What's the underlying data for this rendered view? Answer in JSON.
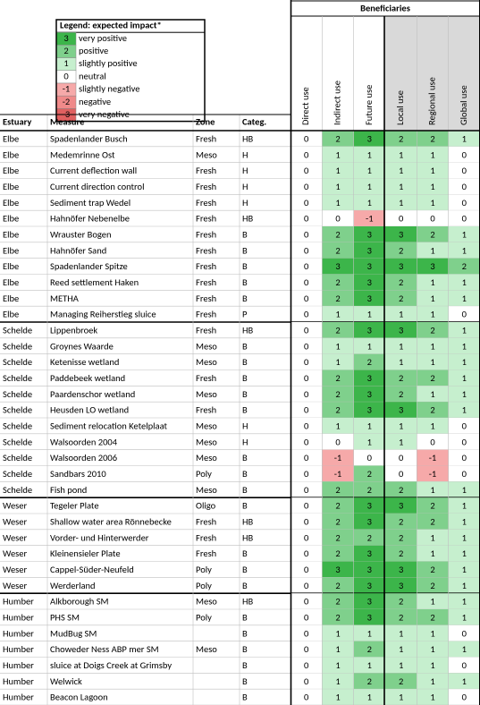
{
  "legend": {
    "title": "Legend: expected impact*",
    "entries": [
      {
        "value": 3,
        "label": "very positive",
        "color": "#3cb54a"
      },
      {
        "value": 2,
        "label": "positive",
        "color": "#7fd08c"
      },
      {
        "value": 1,
        "label": "slightly positive",
        "color": "#c6efce"
      },
      {
        "value": 0,
        "label": "neutral",
        "color": "#ffffff"
      },
      {
        "value": -1,
        "label": "slightly negative",
        "color": "#f6a9a9"
      },
      {
        "value": -2,
        "label": "negative",
        "color": "#f08a8a"
      },
      {
        "value": -3,
        "label": "very negative",
        "color": "#e06060"
      }
    ]
  },
  "table": {
    "group_header": "Beneficiaries",
    "headers": [
      "Estuary",
      "Measure",
      "Zone",
      "Categ."
    ],
    "columns": [
      "Direct use",
      "Indirect use",
      "Future use",
      "Local use",
      "Regional use",
      "Global use"
    ],
    "rows": [
      {
        "estuary": "Elbe",
        "measure": "Spadenlander Busch",
        "zone": "Fresh",
        "categ": "HB",
        "values": [
          0,
          2,
          3,
          2,
          2,
          1
        ]
      },
      {
        "estuary": "Elbe",
        "measure": "Medemrinne Ost",
        "zone": "Meso",
        "categ": "H",
        "values": [
          0,
          1,
          1,
          1,
          1,
          0
        ]
      },
      {
        "estuary": "Elbe",
        "measure": "Current deflection wall",
        "zone": "Fresh",
        "categ": "H",
        "values": [
          0,
          1,
          1,
          1,
          1,
          0
        ]
      },
      {
        "estuary": "Elbe",
        "measure": "Current direction control",
        "zone": "Fresh",
        "categ": "H",
        "values": [
          0,
          1,
          1,
          1,
          1,
          0
        ]
      },
      {
        "estuary": "Elbe",
        "measure": "Sediment trap Wedel",
        "zone": "Fresh",
        "categ": "H",
        "values": [
          0,
          1,
          1,
          1,
          1,
          0
        ]
      },
      {
        "estuary": "Elbe",
        "measure": "Hahnöfer Nebenelbe",
        "zone": "Fresh",
        "categ": "HB",
        "values": [
          0,
          0,
          -1,
          0,
          0,
          0
        ]
      },
      {
        "estuary": "Elbe",
        "measure": "Wrauster Bogen",
        "zone": "Fresh",
        "categ": "B",
        "values": [
          0,
          2,
          3,
          3,
          2,
          1
        ]
      },
      {
        "estuary": "Elbe",
        "measure": "Hahnöfer Sand",
        "zone": "Fresh",
        "categ": "B",
        "values": [
          0,
          2,
          3,
          2,
          1,
          1
        ]
      },
      {
        "estuary": "Elbe",
        "measure": "Spadenlander Spitze",
        "zone": "Fresh",
        "categ": "B",
        "values": [
          0,
          3,
          3,
          3,
          3,
          2
        ]
      },
      {
        "estuary": "Elbe",
        "measure": "Reed settlement Haken",
        "zone": "Fresh",
        "categ": "B",
        "values": [
          0,
          2,
          3,
          2,
          1,
          1
        ]
      },
      {
        "estuary": "Elbe",
        "measure": "METHA",
        "zone": "Fresh",
        "categ": "B",
        "values": [
          0,
          2,
          3,
          2,
          1,
          1
        ]
      },
      {
        "estuary": "Elbe",
        "measure": "Managing Reiherstieg sluice",
        "zone": "Fresh",
        "categ": "P",
        "values": [
          0,
          1,
          1,
          1,
          1,
          0
        ]
      },
      {
        "estuary": "Schelde",
        "measure": "Lippenbroek",
        "zone": "Fresh",
        "categ": "HB",
        "values": [
          0,
          2,
          3,
          3,
          2,
          1
        ]
      },
      {
        "estuary": "Schelde",
        "measure": "Groynes Waarde",
        "zone": "Meso",
        "categ": "B",
        "values": [
          0,
          1,
          1,
          1,
          1,
          1
        ]
      },
      {
        "estuary": "Schelde",
        "measure": "Ketenisse wetland",
        "zone": "Meso",
        "categ": "B",
        "values": [
          0,
          1,
          2,
          1,
          1,
          1
        ]
      },
      {
        "estuary": "Schelde",
        "measure": "Paddebeek wetland",
        "zone": "Fresh",
        "categ": "B",
        "values": [
          0,
          2,
          3,
          2,
          2,
          1
        ]
      },
      {
        "estuary": "Schelde",
        "measure": "Paardenschor wetland",
        "zone": "Meso",
        "categ": "B",
        "values": [
          0,
          2,
          3,
          2,
          1,
          1
        ]
      },
      {
        "estuary": "Schelde",
        "measure": "Heusden LO wetland",
        "zone": "Fresh",
        "categ": "B",
        "values": [
          0,
          2,
          3,
          3,
          2,
          1
        ]
      },
      {
        "estuary": "Schelde",
        "measure": "Sediment relocation Ketelplaat",
        "zone": "Meso",
        "categ": "H",
        "values": [
          0,
          1,
          1,
          1,
          1,
          0
        ]
      },
      {
        "estuary": "Schelde",
        "measure": "Walsoorden 2004",
        "zone": "Meso",
        "categ": "H",
        "values": [
          0,
          0,
          1,
          1,
          0,
          0
        ]
      },
      {
        "estuary": "Schelde",
        "measure": "Walsoorden 2006",
        "zone": "Meso",
        "categ": "B",
        "values": [
          0,
          -1,
          0,
          0,
          -1,
          0
        ]
      },
      {
        "estuary": "Schelde",
        "measure": "Sandbars 2010",
        "zone": "Poly",
        "categ": "B",
        "values": [
          0,
          -1,
          2,
          0,
          -1,
          0
        ]
      },
      {
        "estuary": "Schelde",
        "measure": "Fish pond",
        "zone": "Meso",
        "categ": "B",
        "values": [
          0,
          2,
          2,
          2,
          1,
          1
        ]
      },
      {
        "estuary": "Weser",
        "measure": "Tegeler Plate",
        "zone": "Oligo",
        "categ": "B",
        "values": [
          0,
          2,
          3,
          3,
          2,
          1
        ]
      },
      {
        "estuary": "Weser",
        "measure": "Shallow water area Rönnebecke",
        "zone": "Fresh",
        "categ": "HB",
        "values": [
          0,
          2,
          3,
          2,
          2,
          1
        ]
      },
      {
        "estuary": "Weser",
        "measure": "Vorder- und Hinterwerder",
        "zone": "Fresh",
        "categ": "HB",
        "values": [
          0,
          2,
          2,
          2,
          1,
          1
        ]
      },
      {
        "estuary": "Weser",
        "measure": "Kleinensieler Plate",
        "zone": "Fresh",
        "categ": "B",
        "values": [
          0,
          2,
          3,
          2,
          1,
          1
        ]
      },
      {
        "estuary": "Weser",
        "measure": "Cappel-Süder-Neufeld",
        "zone": "Poly",
        "categ": "B",
        "values": [
          0,
          3,
          3,
          3,
          2,
          1
        ]
      },
      {
        "estuary": "Weser",
        "measure": "Werderland",
        "zone": "Poly",
        "categ": "B",
        "values": [
          0,
          2,
          3,
          3,
          2,
          1
        ]
      },
      {
        "estuary": "Humber",
        "measure": "Alkborough SM",
        "zone": "Meso",
        "categ": "HB",
        "values": [
          0,
          2,
          3,
          2,
          1,
          1
        ]
      },
      {
        "estuary": "Humber",
        "measure": "PHS SM",
        "zone": "Poly",
        "categ": "B",
        "values": [
          0,
          2,
          3,
          2,
          2,
          1
        ]
      },
      {
        "estuary": "Humber",
        "measure": "MudBug SM",
        "zone": null,
        "categ": "B",
        "values": [
          0,
          1,
          1,
          1,
          1,
          0
        ]
      },
      {
        "estuary": "Humber",
        "measure": "Choweder Ness ABP mer SM",
        "zone": "Meso",
        "categ": "B",
        "values": [
          0,
          1,
          2,
          1,
          1,
          1
        ]
      },
      {
        "estuary": "Humber",
        "measure": "sluice at Doigs Creek at Grimsby",
        "zone": null,
        "categ": "B",
        "values": [
          0,
          1,
          1,
          1,
          1,
          0
        ]
      },
      {
        "estuary": "Humber",
        "measure": "Welwick",
        "zone": null,
        "categ": "B",
        "values": [
          0,
          1,
          2,
          2,
          1,
          1
        ]
      },
      {
        "estuary": "Humber",
        "measure": "Beacon Lagoon",
        "zone": null,
        "categ": "B",
        "values": [
          0,
          1,
          1,
          1,
          1,
          0
        ]
      }
    ]
  }
}
